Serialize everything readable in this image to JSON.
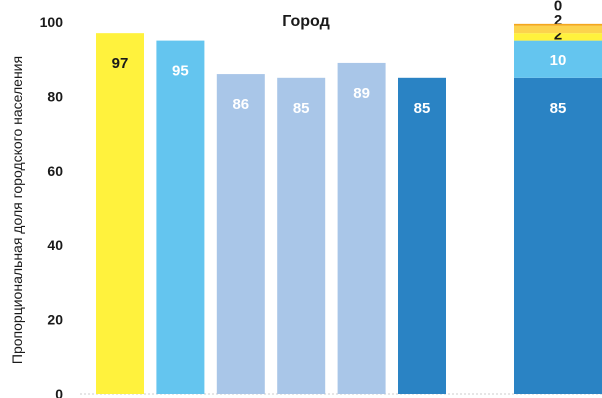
{
  "chart_data": {
    "type": "bar",
    "title": "Город",
    "ylabel": "Пропорциональная доля городского населения",
    "xlabel": "",
    "ylim": [
      0,
      100
    ],
    "yticks": [
      0,
      20,
      40,
      60,
      80,
      100
    ],
    "grid": false,
    "bars": [
      {
        "value": 97,
        "label": "97",
        "color": "#fff23d",
        "label_color": "#1a1a1a"
      },
      {
        "value": 95,
        "label": "95",
        "color": "#64c5ef",
        "label_color": "#ffffff"
      },
      {
        "value": 86,
        "label": "86",
        "color": "#a9c6e8",
        "label_color": "#ffffff"
      },
      {
        "value": 85,
        "label": "85",
        "color": "#a9c6e8",
        "label_color": "#ffffff"
      },
      {
        "value": 89,
        "label": "89",
        "color": "#a9c6e8",
        "label_color": "#ffffff"
      },
      {
        "value": 85,
        "label": "85",
        "color": "#2a83c4",
        "label_color": "#ffffff"
      }
    ],
    "stacked_bar": {
      "segments": [
        {
          "value": 85,
          "label": "85",
          "color": "#2a83c4",
          "label_color": "#ffffff"
        },
        {
          "value": 10,
          "label": "10",
          "color": "#64c5ef",
          "label_color": "#ffffff"
        },
        {
          "value": 2,
          "label": "2",
          "color": "#fff23d",
          "label_color": "#1a1a1a"
        },
        {
          "value": 2,
          "label": "2",
          "color": "#fcd34d",
          "label_color": "#1a1a1a"
        },
        {
          "value": 0.5,
          "label": "0",
          "color": "#f4a81c",
          "label_color": "#1a1a1a"
        }
      ]
    }
  }
}
